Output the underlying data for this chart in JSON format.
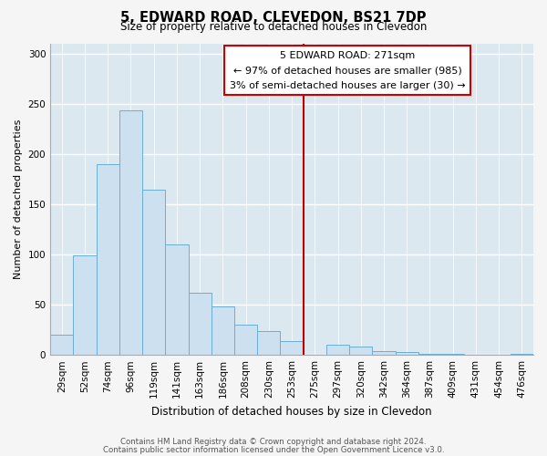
{
  "title": "5, EDWARD ROAD, CLEVEDON, BS21 7DP",
  "subtitle": "Size of property relative to detached houses in Clevedon",
  "xlabel": "Distribution of detached houses by size in Clevedon",
  "ylabel": "Number of detached properties",
  "bar_labels": [
    "29sqm",
    "52sqm",
    "74sqm",
    "96sqm",
    "119sqm",
    "141sqm",
    "163sqm",
    "186sqm",
    "208sqm",
    "230sqm",
    "253sqm",
    "275sqm",
    "297sqm",
    "320sqm",
    "342sqm",
    "364sqm",
    "387sqm",
    "409sqm",
    "431sqm",
    "454sqm",
    "476sqm"
  ],
  "bar_values": [
    20,
    99,
    190,
    243,
    164,
    110,
    62,
    48,
    30,
    24,
    14,
    0,
    10,
    8,
    4,
    3,
    1,
    1,
    0,
    0,
    1
  ],
  "bar_color": "#cce0f0",
  "bar_edge_color": "#6baed6",
  "highlight_color": "#bb0000",
  "annotation_title": "5 EDWARD ROAD: 271sqm",
  "annotation_line1": "← 97% of detached houses are smaller (985)",
  "annotation_line2": "3% of semi-detached houses are larger (30) →",
  "annotation_box_color": "#ffffff",
  "annotation_box_edge": "#cc0000",
  "footer_line1": "Contains HM Land Registry data © Crown copyright and database right 2024.",
  "footer_line2": "Contains public sector information licensed under the Open Government Licence v3.0.",
  "ylim": [
    0,
    310
  ],
  "yticks": [
    0,
    50,
    100,
    150,
    200,
    250,
    300
  ],
  "bg_color": "#f5f5f5",
  "plot_bg_color": "#dce8f0"
}
